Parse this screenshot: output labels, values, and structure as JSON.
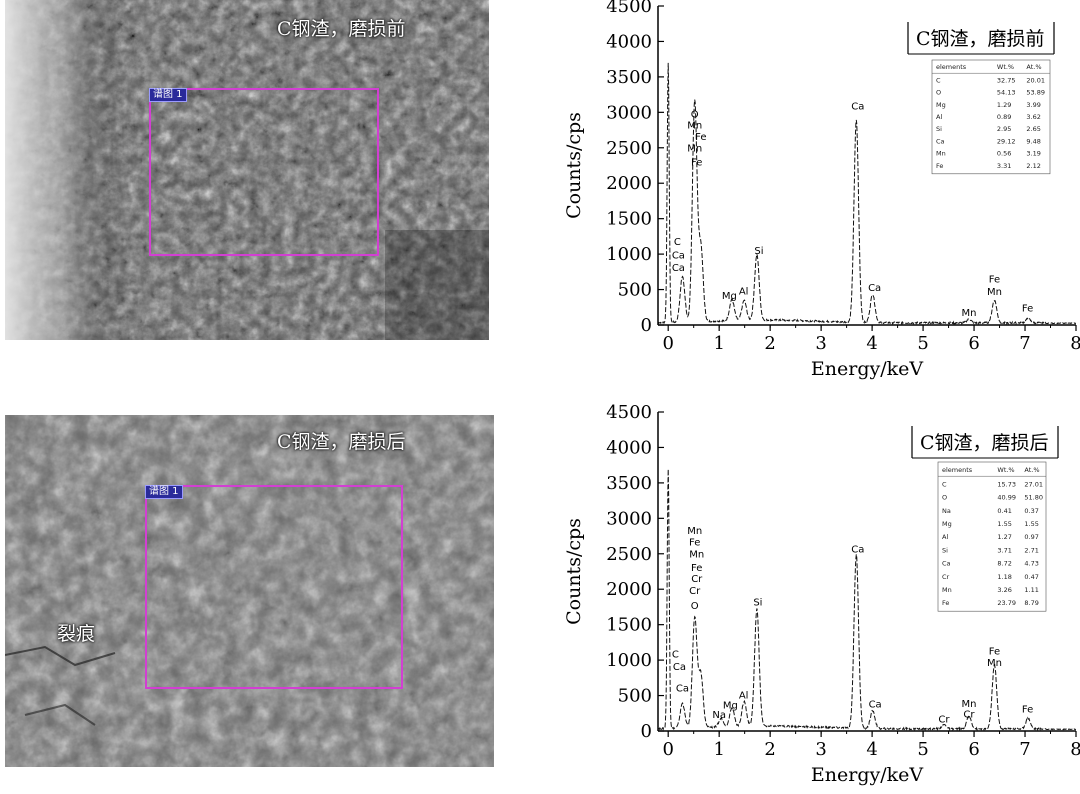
{
  "panels": [
    {
      "sem_label": "C钢渣，磨损前",
      "roi_label": "谱图 1"
    },
    {
      "sem_label": "C钢渣，磨损后",
      "roi_label": "谱图 1",
      "crack_label": "裂痕"
    }
  ],
  "chart_data": [
    {
      "type": "line",
      "title": "C钢渣，磨损前",
      "xlabel": "Energy/keV",
      "ylabel": "Counts/cps",
      "xlim": [
        -0.2,
        8
      ],
      "ylim": [
        0,
        4500
      ],
      "xticks": [
        0,
        1,
        2,
        3,
        4,
        5,
        6,
        7,
        8
      ],
      "yticks": [
        0,
        500,
        1000,
        1500,
        2000,
        2500,
        3000,
        3500,
        4000,
        4500
      ],
      "peaks": [
        {
          "x": 0.0,
          "y": 3650
        },
        {
          "x": 0.28,
          "y": 650
        },
        {
          "x": 0.52,
          "y": 3100
        },
        {
          "x": 0.64,
          "y": 1050
        },
        {
          "x": 1.25,
          "y": 300
        },
        {
          "x": 1.49,
          "y": 280
        },
        {
          "x": 1.74,
          "y": 920
        },
        {
          "x": 3.69,
          "y": 2850
        },
        {
          "x": 4.01,
          "y": 400
        },
        {
          "x": 5.9,
          "y": 50
        },
        {
          "x": 6.4,
          "y": 320
        },
        {
          "x": 7.06,
          "y": 60
        }
      ],
      "peak_labels": [
        {
          "text": "O",
          "x": 0.52,
          "y": 2930
        },
        {
          "text": "Mn",
          "x": 0.52,
          "y": 2770
        },
        {
          "text": "Fe",
          "x": 0.64,
          "y": 2610
        },
        {
          "text": "Mn",
          "x": 0.52,
          "y": 2450
        },
        {
          "text": "Fe",
          "x": 0.56,
          "y": 2250
        },
        {
          "text": "C",
          "x": 0.18,
          "y": 1130
        },
        {
          "text": "Ca",
          "x": 0.2,
          "y": 940
        },
        {
          "text": "Ca",
          "x": 0.2,
          "y": 760
        },
        {
          "text": "Mg",
          "x": 1.2,
          "y": 370
        },
        {
          "text": "Al",
          "x": 1.48,
          "y": 430
        },
        {
          "text": "Si",
          "x": 1.78,
          "y": 1000
        },
        {
          "text": "Ca",
          "x": 3.72,
          "y": 3040
        },
        {
          "text": "Ca",
          "x": 4.05,
          "y": 480
        },
        {
          "text": "Mn",
          "x": 5.9,
          "y": 130
        },
        {
          "text": "Fe",
          "x": 6.4,
          "y": 600
        },
        {
          "text": "Mn",
          "x": 6.4,
          "y": 420
        },
        {
          "text": "Fe",
          "x": 7.05,
          "y": 190
        }
      ],
      "table": {
        "headers": [
          "elements",
          "Wt.%",
          "At.%"
        ],
        "rows": [
          [
            "C",
            "32.75",
            "20.01"
          ],
          [
            "O",
            "54.13",
            "53.89"
          ],
          [
            "Mg",
            "1.29",
            "3.99"
          ],
          [
            "Al",
            "0.89",
            "3.62"
          ],
          [
            "Si",
            "2.95",
            "2.65"
          ],
          [
            "Ca",
            "29.12",
            "9.48"
          ],
          [
            "Mn",
            "0.56",
            "3.19"
          ],
          [
            "Fe",
            "3.31",
            "2.12"
          ]
        ]
      }
    },
    {
      "type": "line",
      "title": "C钢渣，磨损后",
      "xlabel": "Energy/keV",
      "ylabel": "Counts/cps",
      "xlim": [
        -0.2,
        8
      ],
      "ylim": [
        0,
        4500
      ],
      "xticks": [
        0,
        1,
        2,
        3,
        4,
        5,
        6,
        7,
        8
      ],
      "yticks": [
        0,
        500,
        1000,
        1500,
        2000,
        2500,
        3000,
        3500,
        4000,
        4500
      ],
      "peaks": [
        {
          "x": 0.0,
          "y": 3650
        },
        {
          "x": 0.28,
          "y": 350
        },
        {
          "x": 0.52,
          "y": 1550
        },
        {
          "x": 0.64,
          "y": 750
        },
        {
          "x": 1.04,
          "y": 120
        },
        {
          "x": 1.25,
          "y": 270
        },
        {
          "x": 1.49,
          "y": 350
        },
        {
          "x": 1.74,
          "y": 1650
        },
        {
          "x": 3.69,
          "y": 2450
        },
        {
          "x": 4.01,
          "y": 250
        },
        {
          "x": 5.41,
          "y": 60
        },
        {
          "x": 5.9,
          "y": 180
        },
        {
          "x": 6.4,
          "y": 900
        },
        {
          "x": 7.06,
          "y": 150
        }
      ],
      "peak_labels": [
        {
          "text": "Mn",
          "x": 0.52,
          "y": 2780
        },
        {
          "text": "Fe",
          "x": 0.52,
          "y": 2620
        },
        {
          "text": "Mn",
          "x": 0.56,
          "y": 2450
        },
        {
          "text": "Fe",
          "x": 0.56,
          "y": 2260
        },
        {
          "text": "Cr",
          "x": 0.56,
          "y": 2100
        },
        {
          "text": "Cr",
          "x": 0.52,
          "y": 1930
        },
        {
          "text": "O",
          "x": 0.52,
          "y": 1720
        },
        {
          "text": "C",
          "x": 0.14,
          "y": 1040
        },
        {
          "text": "Ca",
          "x": 0.22,
          "y": 860
        },
        {
          "text": "Ca",
          "x": 0.28,
          "y": 560
        },
        {
          "text": "Na",
          "x": 1.0,
          "y": 180
        },
        {
          "text": "Mg",
          "x": 1.22,
          "y": 320
        },
        {
          "text": "Al",
          "x": 1.48,
          "y": 460
        },
        {
          "text": "Si",
          "x": 1.76,
          "y": 1770
        },
        {
          "text": "Ca",
          "x": 3.72,
          "y": 2520
        },
        {
          "text": "Ca",
          "x": 4.06,
          "y": 330
        },
        {
          "text": "Cr",
          "x": 5.41,
          "y": 120
        },
        {
          "text": "Mn",
          "x": 5.9,
          "y": 340
        },
        {
          "text": "Cr",
          "x": 5.9,
          "y": 190
        },
        {
          "text": "Fe",
          "x": 6.4,
          "y": 1080
        },
        {
          "text": "Mn",
          "x": 6.4,
          "y": 920
        },
        {
          "text": "Fe",
          "x": 7.05,
          "y": 260
        }
      ],
      "table": {
        "headers": [
          "elements",
          "Wt.%",
          "At.%"
        ],
        "rows": [
          [
            "C",
            "15.73",
            "27.01"
          ],
          [
            "O",
            "40.99",
            "51.80"
          ],
          [
            "Na",
            "0.41",
            "0.37"
          ],
          [
            "Mg",
            "1.55",
            "1.55"
          ],
          [
            "Al",
            "1.27",
            "0.97"
          ],
          [
            "Si",
            "3.71",
            "2.71"
          ],
          [
            "Ca",
            "8.72",
            "4.73"
          ],
          [
            "Cr",
            "1.18",
            "0.47"
          ],
          [
            "Mn",
            "3.26",
            "1.11"
          ],
          [
            "Fe",
            "23.79",
            "8.79"
          ]
        ]
      }
    }
  ]
}
